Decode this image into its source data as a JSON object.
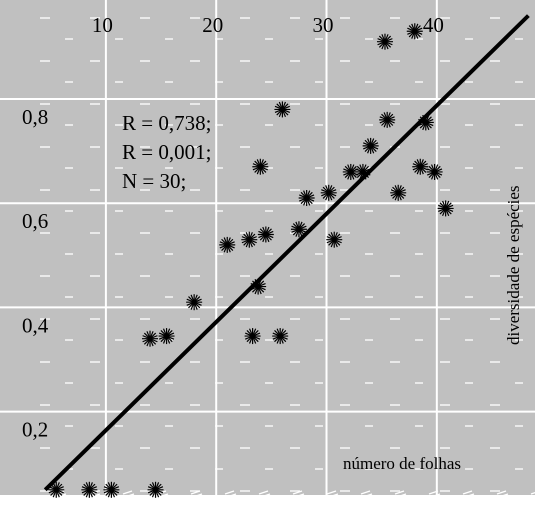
{
  "chart_data": {
    "type": "scatter",
    "title": "",
    "xlabel": "número de folhas",
    "ylabel": "diversidade de espécies",
    "x_ticks": [
      "10",
      "20",
      "30",
      "40"
    ],
    "x_tick_values": [
      10,
      20,
      30,
      40
    ],
    "y_ticks": [
      "0,2",
      "0,4",
      "0,6",
      "0,8"
    ],
    "y_tick_values": [
      0.2,
      0.4,
      0.6,
      0.8
    ],
    "xlim": [
      0.4,
      48.9
    ],
    "ylim": [
      0.04,
      0.99
    ],
    "grid": true,
    "background": "#c0c0c0",
    "grid_color": "#ffffff",
    "point_color": "#000000",
    "line_color": "#000000",
    "annotations": [
      "R = 0,738;",
      "R = 0,001;",
      "N = 30;"
    ],
    "series": [
      {
        "points": [
          {
            "x": 5.5,
            "y": 0.05
          },
          {
            "x": 8.5,
            "y": 0.05
          },
          {
            "x": 10.5,
            "y": 0.05
          },
          {
            "x": 14.5,
            "y": 0.05
          },
          {
            "x": 18.0,
            "y": 0.41
          },
          {
            "x": 14.0,
            "y": 0.34
          },
          {
            "x": 15.5,
            "y": 0.345
          },
          {
            "x": 21.0,
            "y": 0.52
          },
          {
            "x": 23.0,
            "y": 0.53
          },
          {
            "x": 23.3,
            "y": 0.345
          },
          {
            "x": 23.8,
            "y": 0.44
          },
          {
            "x": 24.5,
            "y": 0.54
          },
          {
            "x": 25.8,
            "y": 0.345
          },
          {
            "x": 24.0,
            "y": 0.67
          },
          {
            "x": 26.0,
            "y": 0.78
          },
          {
            "x": 27.5,
            "y": 0.55
          },
          {
            "x": 28.2,
            "y": 0.61
          },
          {
            "x": 30.2,
            "y": 0.62
          },
          {
            "x": 30.7,
            "y": 0.53
          },
          {
            "x": 32.2,
            "y": 0.66
          },
          {
            "x": 33.3,
            "y": 0.66
          },
          {
            "x": 34.0,
            "y": 0.71
          },
          {
            "x": 35.5,
            "y": 0.76
          },
          {
            "x": 36.5,
            "y": 0.62
          },
          {
            "x": 35.3,
            "y": 0.91
          },
          {
            "x": 38.0,
            "y": 0.93
          },
          {
            "x": 38.5,
            "y": 0.67
          },
          {
            "x": 39.0,
            "y": 0.755
          },
          {
            "x": 39.8,
            "y": 0.66
          },
          {
            "x": 40.8,
            "y": 0.59
          }
        ]
      }
    ],
    "regression_line": {
      "x": [
        4.5,
        48.3
      ],
      "y": [
        0.05,
        0.96
      ]
    }
  }
}
